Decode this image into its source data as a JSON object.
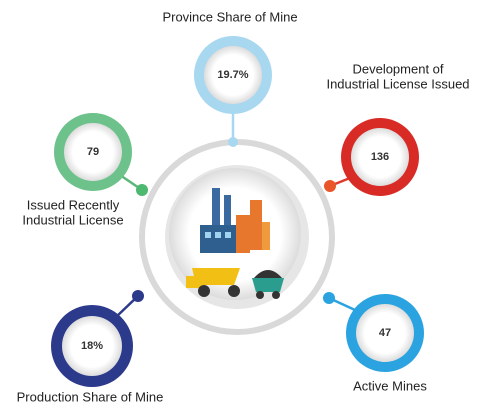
{
  "nodes": [
    {
      "label": [
        "Province Share of Mine"
      ],
      "value": "19.7%"
    },
    {
      "label": [
        "Development of",
        "Industrial License Issued"
      ],
      "value": "136"
    },
    {
      "label": [
        "Issued Recently",
        "Industrial License"
      ],
      "value": "79"
    },
    {
      "label": [
        "Production Share of Mine"
      ],
      "value": "18%"
    },
    {
      "label": [
        "Active Mines"
      ],
      "value": "47"
    }
  ]
}
